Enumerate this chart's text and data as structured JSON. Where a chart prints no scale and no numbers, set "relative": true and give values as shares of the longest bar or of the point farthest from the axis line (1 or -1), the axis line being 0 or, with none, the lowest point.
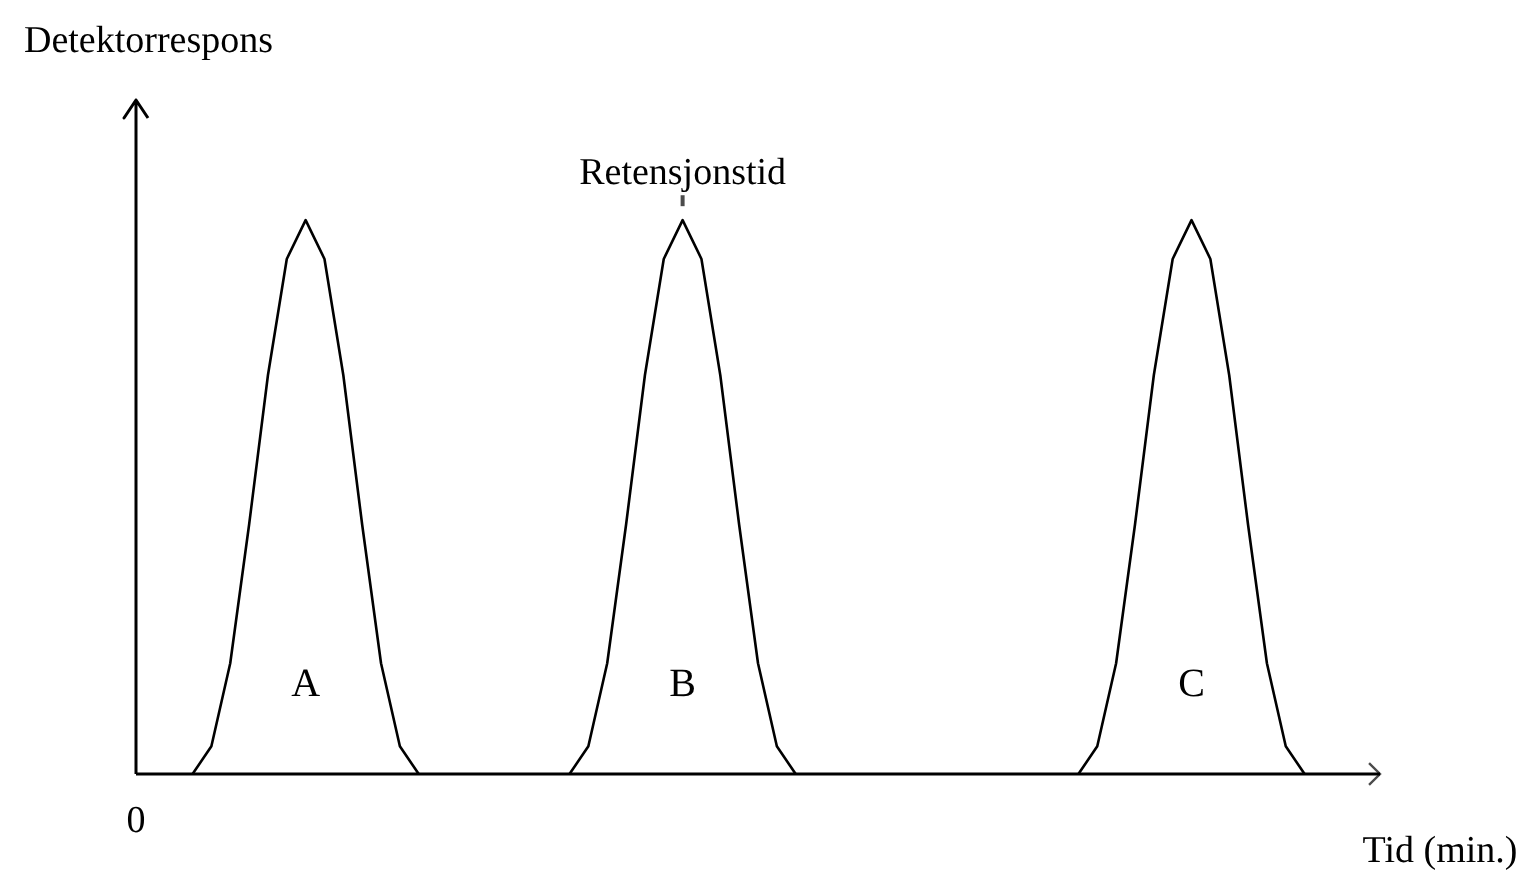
{
  "chart_data": {
    "type": "line",
    "relative": true,
    "xlabel": "Tid (min.)",
    "ylabel": "Detektorrespons",
    "categories": [
      null,
      null,
      null,
      null,
      null,
      null,
      null,
      null,
      null,
      null,
      null,
      null,
      null,
      null,
      null,
      null,
      null,
      null,
      null,
      null,
      null,
      null,
      null,
      null,
      null,
      null,
      null,
      null,
      null,
      null,
      null,
      null,
      null,
      null,
      null,
      null,
      null,
      null,
      null,
      null,
      null,
      null,
      null,
      null,
      null,
      null,
      null,
      null,
      null,
      null,
      null,
      null,
      null,
      null,
      null,
      null,
      null,
      null,
      null,
      null,
      null,
      null,
      null,
      null,
      null,
      null,
      null
    ],
    "series": [
      {
        "name": "A",
        "color": "#000000",
        "values": [
          null,
          null,
          null,
          0,
          0.05,
          0.2,
          0.45,
          0.72,
          0.93,
          1,
          0.93,
          0.72,
          0.45,
          0.2,
          0.05,
          0,
          null,
          null,
          null,
          null,
          null,
          null,
          null,
          null,
          null,
          null,
          null,
          null,
          null,
          null,
          null,
          null,
          null,
          null,
          null,
          null,
          null,
          null,
          null,
          null,
          null,
          null,
          null,
          null,
          null,
          null,
          null,
          null,
          null,
          null,
          null,
          null,
          null,
          null,
          null,
          null,
          null,
          null,
          null,
          null,
          null,
          null,
          null,
          null,
          null,
          null,
          null
        ]
      },
      {
        "name": "B",
        "color": "#000000",
        "values": [
          null,
          null,
          null,
          null,
          null,
          null,
          null,
          null,
          null,
          null,
          null,
          null,
          null,
          null,
          null,
          null,
          null,
          null,
          null,
          null,
          null,
          null,
          null,
          0,
          0.05,
          0.2,
          0.45,
          0.72,
          0.93,
          1,
          0.93,
          0.72,
          0.45,
          0.2,
          0.05,
          0,
          null,
          null,
          null,
          null,
          null,
          null,
          null,
          null,
          null,
          null,
          null,
          null,
          null,
          null,
          null,
          null,
          null,
          null,
          null,
          null,
          null,
          null,
          null,
          null,
          null,
          null,
          null,
          null,
          null,
          null,
          null
        ]
      },
      {
        "name": "C",
        "color": "#000000",
        "values": [
          null,
          null,
          null,
          null,
          null,
          null,
          null,
          null,
          null,
          null,
          null,
          null,
          null,
          null,
          null,
          null,
          null,
          null,
          null,
          null,
          null,
          null,
          null,
          null,
          null,
          null,
          null,
          null,
          null,
          null,
          null,
          null,
          null,
          null,
          null,
          null,
          null,
          null,
          null,
          null,
          null,
          null,
          null,
          null,
          null,
          null,
          null,
          null,
          null,
          null,
          0,
          0.05,
          0.2,
          0.45,
          0.72,
          0.93,
          1,
          0.93,
          0.72,
          0.45,
          0.2,
          0.05,
          0,
          null,
          null,
          null,
          null
        ]
      }
    ],
    "annotations": [
      {
        "text": "Retensjonstid",
        "y": 1
      },
      "0"
    ],
    "line_style": "solid"
  }
}
